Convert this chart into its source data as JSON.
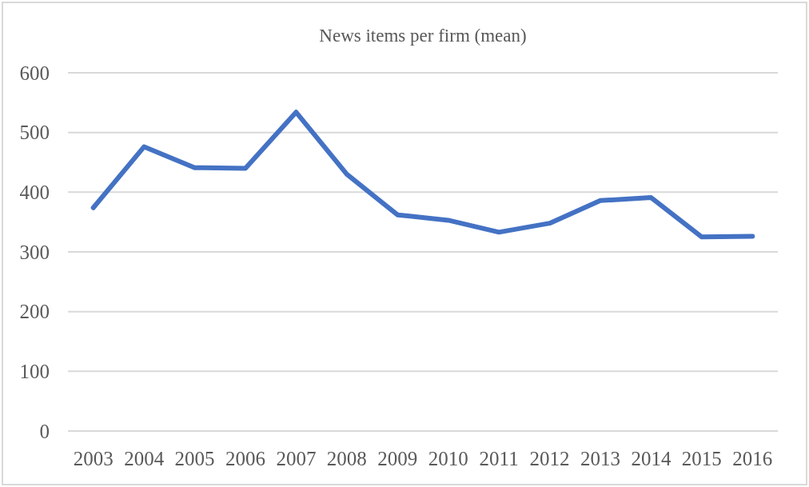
{
  "chart_data": {
    "type": "line",
    "title": "News items per firm (mean)",
    "categories": [
      "2003",
      "2004",
      "2005",
      "2006",
      "2007",
      "2008",
      "2009",
      "2010",
      "2011",
      "2012",
      "2013",
      "2014",
      "2015",
      "2016"
    ],
    "values": [
      374,
      476,
      441,
      440,
      534,
      430,
      362,
      353,
      333,
      348,
      386,
      391,
      325,
      326
    ],
    "color": "#4472c4",
    "ylim": [
      0,
      600
    ],
    "yticks": [
      0,
      100,
      200,
      300,
      400,
      500,
      600
    ],
    "grid": "y"
  }
}
